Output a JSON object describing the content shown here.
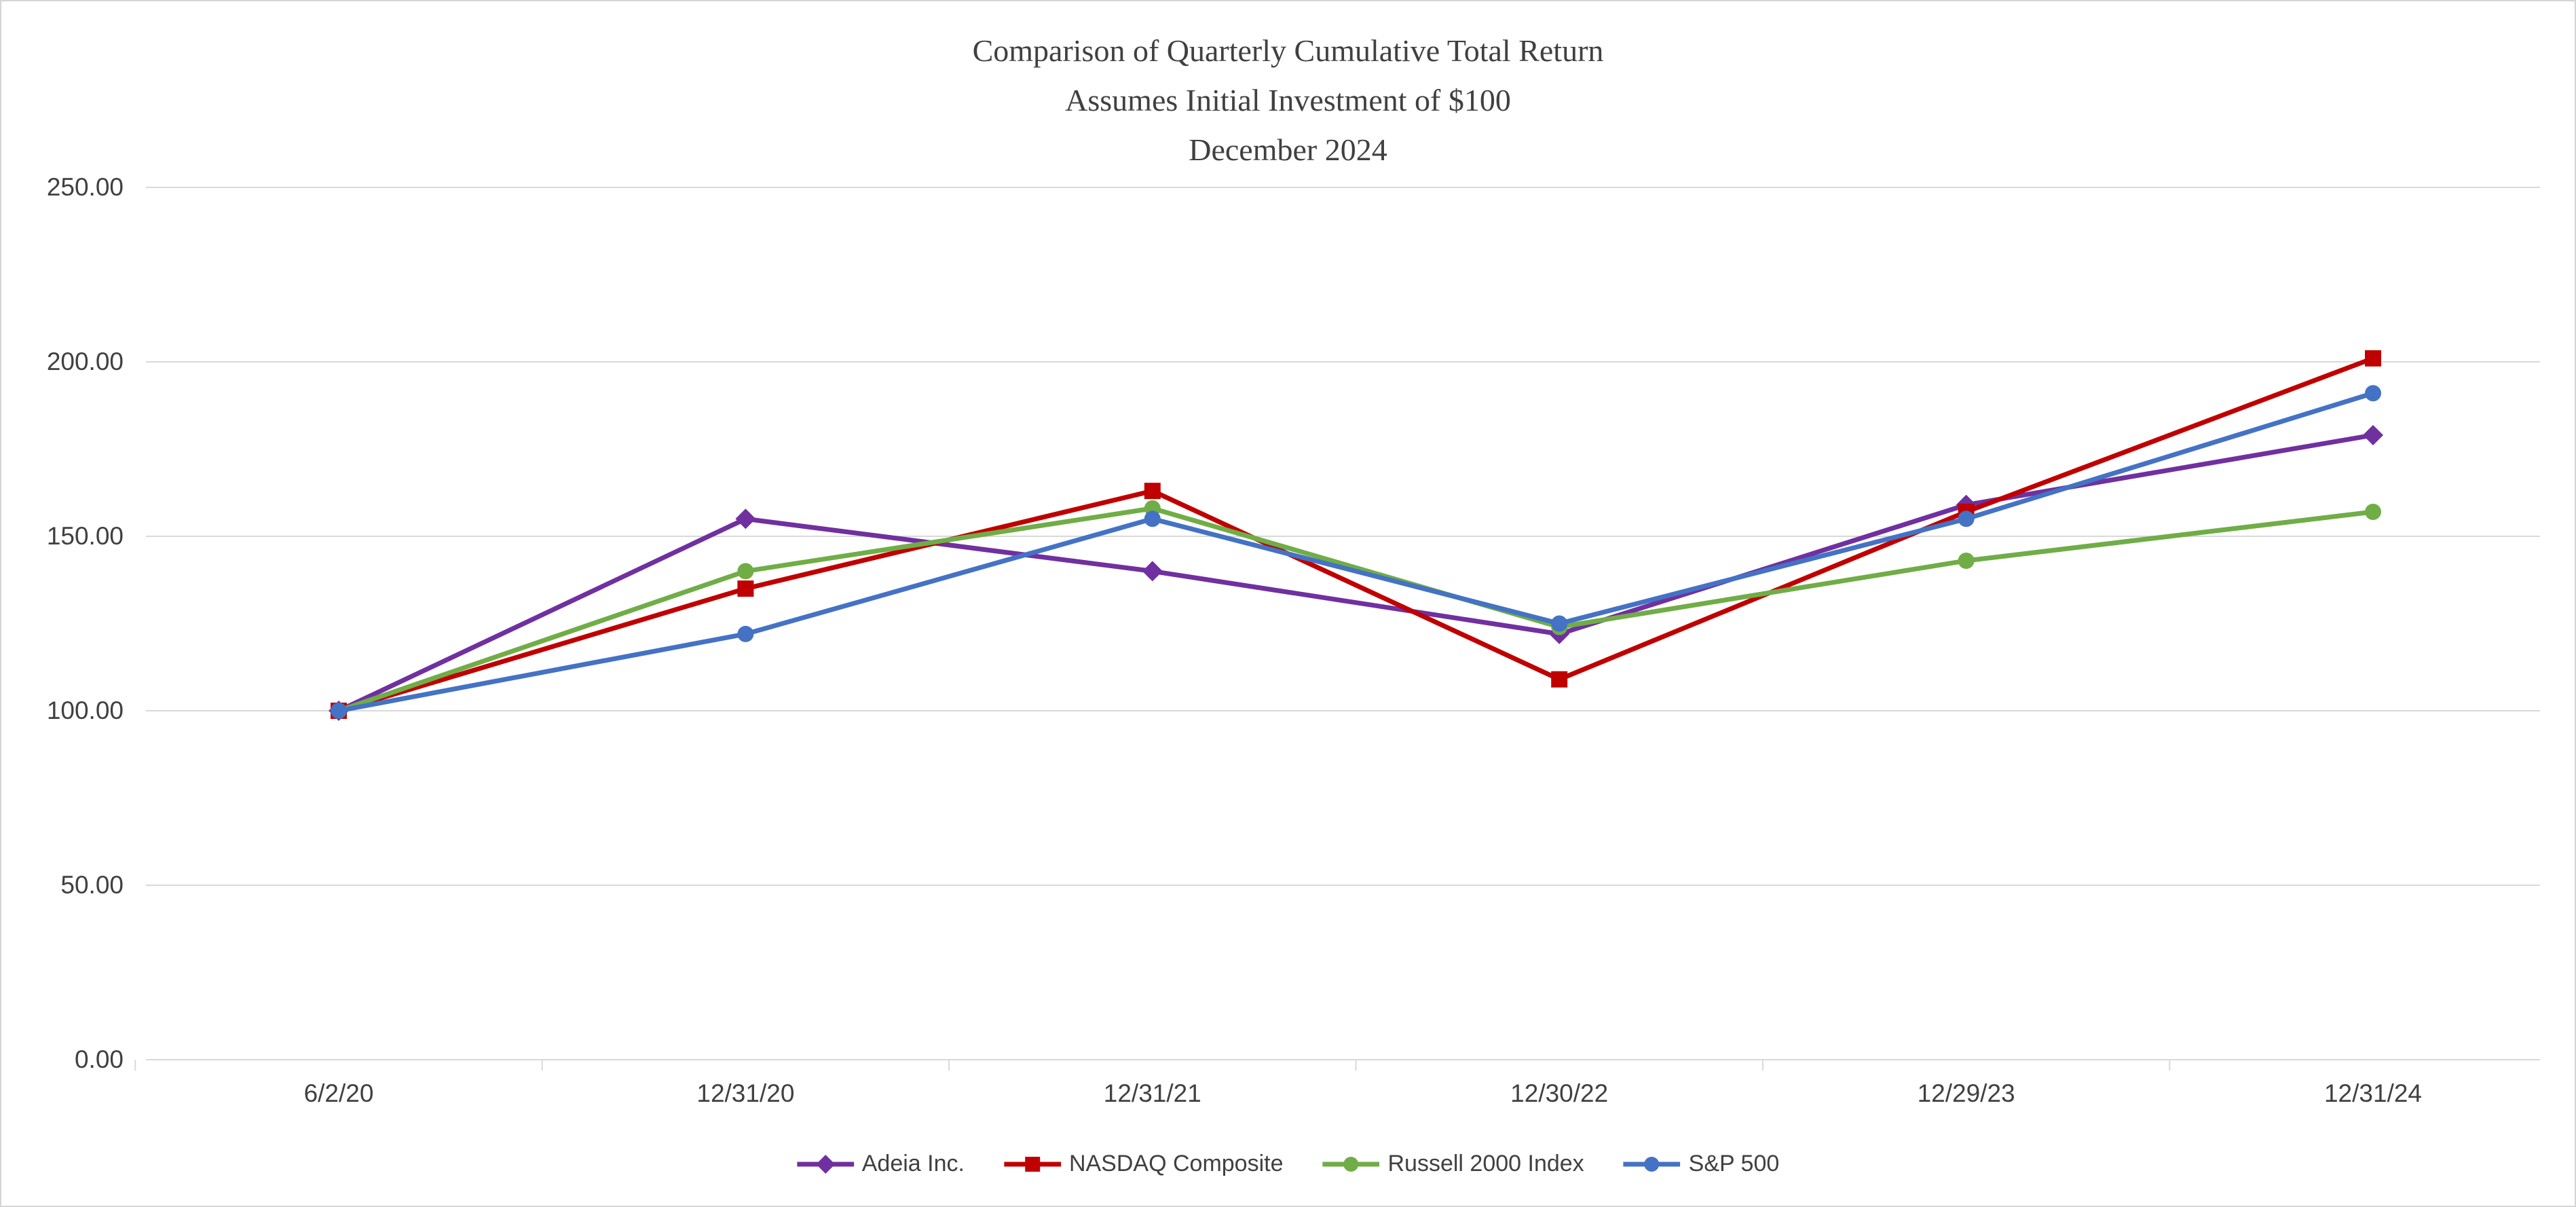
{
  "chart_data": {
    "type": "line",
    "title": "Comparison of Quarterly Cumulative Total Return",
    "subtitle": "Assumes Initial Investment of $100",
    "subtitle2": "December 2024",
    "xlabel": "",
    "ylabel": "",
    "categories": [
      "6/2/20",
      "12/31/20",
      "12/31/21",
      "12/30/22",
      "12/29/23",
      "12/31/24"
    ],
    "series": [
      {
        "name": "Adeia Inc.",
        "color": "#7030A0",
        "marker": "diamond",
        "values": [
          100,
          155,
          140,
          122,
          159,
          179
        ]
      },
      {
        "name": "NASDAQ Composite",
        "color": "#C00000",
        "marker": "square",
        "values": [
          100,
          135,
          163,
          109,
          157,
          201
        ]
      },
      {
        "name": "Russell 2000 Index",
        "color": "#70AD47",
        "marker": "circle",
        "values": [
          100,
          140,
          158,
          124,
          143,
          157
        ]
      },
      {
        "name": "S&P 500",
        "color": "#4472C4",
        "marker": "circle",
        "values": [
          100,
          122,
          155,
          125,
          155,
          191
        ]
      }
    ],
    "y_ticks": [
      "0.00",
      "50.00",
      "100.00",
      "150.00",
      "200.00",
      "250.00"
    ],
    "ylim": [
      0,
      250
    ],
    "grid": "horizontal",
    "gridline_color": "#d9d9d9",
    "text_color": "#404040",
    "legend_position": "bottom"
  }
}
